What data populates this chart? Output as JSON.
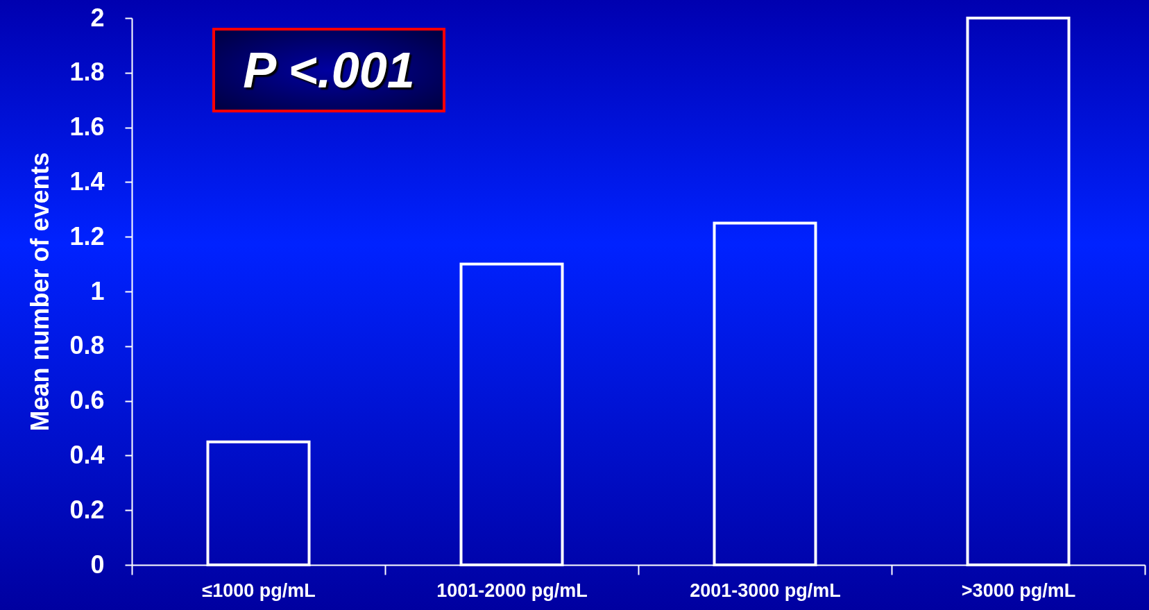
{
  "chart_data": {
    "type": "bar",
    "ylabel": "Mean number of events",
    "categories": [
      "≤1000 pg/mL",
      "1001-2000 pg/mL",
      "2001-3000 pg/mL",
      ">3000 pg/mL"
    ],
    "values": [
      0.45,
      1.1,
      1.25,
      2
    ],
    "color": "#ffffff",
    "ylim": [
      0,
      2
    ],
    "yticks": [
      0,
      0.2,
      0.4,
      0.6,
      0.8,
      1,
      1.2,
      1.4,
      1.6,
      1.8,
      2
    ],
    "grid": false,
    "annotations": [
      "P <.001"
    ]
  }
}
